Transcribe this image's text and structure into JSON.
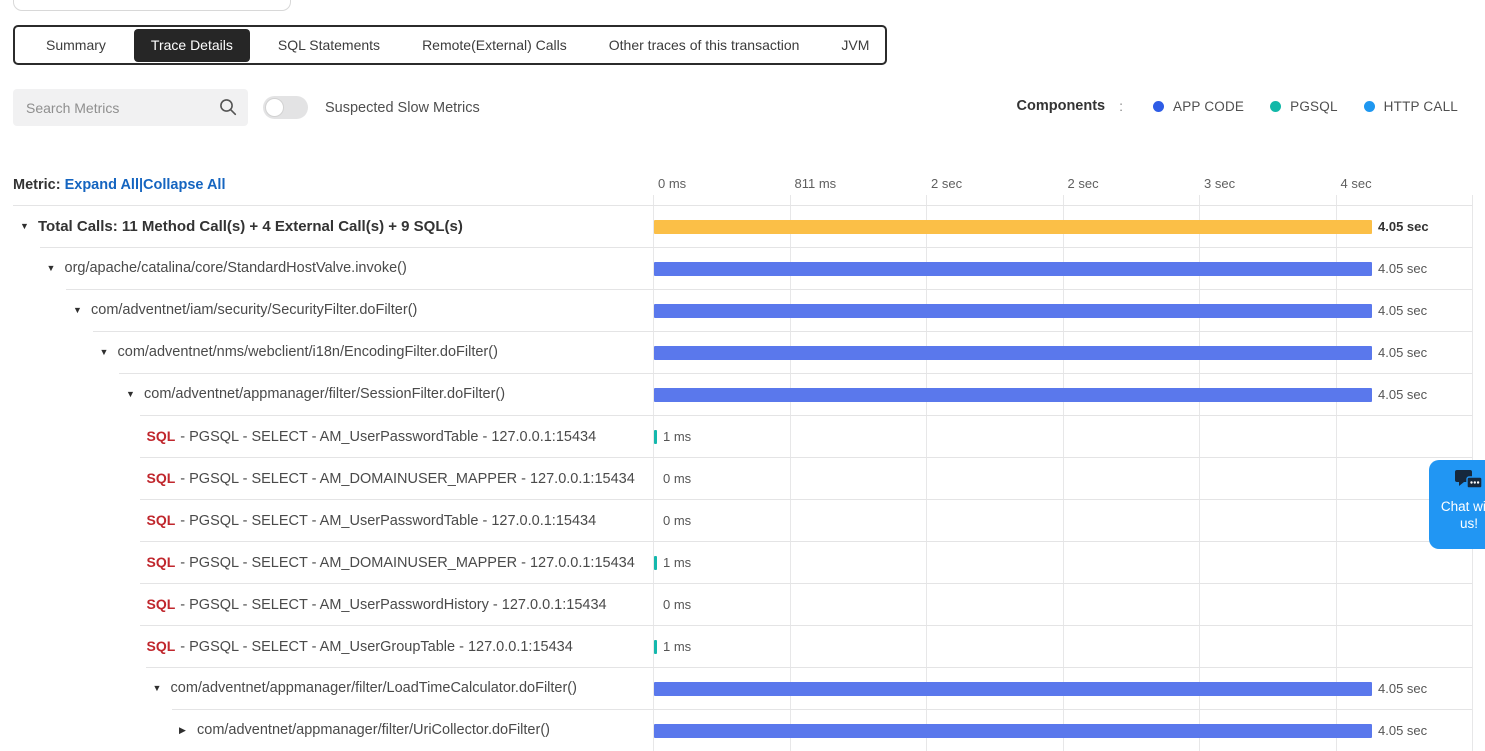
{
  "tabs": {
    "items": [
      {
        "label": "Summary",
        "active": false
      },
      {
        "label": "Trace Details",
        "active": true
      },
      {
        "label": "SQL Statements",
        "active": false
      },
      {
        "label": "Remote(External) Calls",
        "active": false
      },
      {
        "label": "Other traces of this transaction",
        "active": false
      },
      {
        "label": "JVM",
        "active": false
      }
    ]
  },
  "filters": {
    "search_placeholder": "Search Metrics",
    "toggle_label": "Suspected Slow Metrics",
    "toggle_on": false
  },
  "legend": {
    "title": "Components",
    "colon": ":",
    "items": [
      {
        "label": "APP CODE",
        "color": "#2e5ce6"
      },
      {
        "label": "PGSQL",
        "color": "#12b8a8"
      },
      {
        "label": "HTTP CALL",
        "color": "#1e97f0"
      }
    ]
  },
  "table": {
    "metric_label": "Metric:",
    "expand_all": "Expand All",
    "divider": "|",
    "collapse_all": "Collapse All",
    "time_axis": [
      "0 ms",
      "811 ms",
      "2 sec",
      "2 sec",
      "3 sec",
      "4 sec"
    ],
    "total_duration": "4.05 sec",
    "rows": [
      {
        "kind": "total",
        "depth": 0,
        "arrow": "down",
        "label": "Total Calls: 11 Method Call(s) + 4 External Call(s) + 9 SQL(s)",
        "duration": "4.05 sec",
        "bar": "full",
        "bar_color": "#fbbf47"
      },
      {
        "kind": "method",
        "depth": 1,
        "arrow": "down",
        "label": "org/apache/catalina/core/StandardHostValve.invoke()",
        "duration": "4.05 sec",
        "bar": "full",
        "bar_color": "#5a78ec"
      },
      {
        "kind": "method",
        "depth": 2,
        "arrow": "down",
        "label": "com/adventnet/iam/security/SecurityFilter.doFilter()",
        "duration": "4.05 sec",
        "bar": "full",
        "bar_color": "#5a78ec"
      },
      {
        "kind": "method",
        "depth": 3,
        "arrow": "down",
        "label": "com/adventnet/nms/webclient/i18n/EncodingFilter.doFilter()",
        "duration": "4.05 sec",
        "bar": "full",
        "bar_color": "#5a78ec"
      },
      {
        "kind": "method",
        "depth": 4,
        "arrow": "down",
        "label": "com/adventnet/appmanager/filter/SessionFilter.doFilter()",
        "duration": "4.05 sec",
        "bar": "full",
        "bar_color": "#5a78ec"
      },
      {
        "kind": "sql",
        "depth": 5,
        "prefix": "SQL",
        "label": "- PGSQL - SELECT - AM_UserPasswordTable - 127.0.0.1:15434",
        "duration": "1 ms",
        "bar": "sliver",
        "bar_color": "#14b8ad"
      },
      {
        "kind": "sql",
        "depth": 5,
        "prefix": "SQL",
        "label": "- PGSQL - SELECT - AM_DOMAINUSER_MAPPER - 127.0.0.1:15434",
        "duration": "0 ms",
        "bar": "none"
      },
      {
        "kind": "sql",
        "depth": 5,
        "prefix": "SQL",
        "label": "- PGSQL - SELECT - AM_UserPasswordTable - 127.0.0.1:15434",
        "duration": "0 ms",
        "bar": "none"
      },
      {
        "kind": "sql",
        "depth": 5,
        "prefix": "SQL",
        "label": "- PGSQL - SELECT - AM_DOMAINUSER_MAPPER - 127.0.0.1:15434",
        "duration": "1 ms",
        "bar": "sliver",
        "bar_color": "#14b8ad"
      },
      {
        "kind": "sql",
        "depth": 5,
        "prefix": "SQL",
        "label": "- PGSQL - SELECT - AM_UserPasswordHistory - 127.0.0.1:15434",
        "duration": "0 ms",
        "bar": "none"
      },
      {
        "kind": "sql",
        "depth": 5,
        "prefix": "SQL",
        "label": "- PGSQL - SELECT - AM_UserGroupTable - 127.0.0.1:15434",
        "duration": "1 ms",
        "bar": "sliver",
        "bar_color": "#14b8ad"
      },
      {
        "kind": "method",
        "depth": 5,
        "arrow": "down",
        "label": "com/adventnet/appmanager/filter/LoadTimeCalculator.doFilter()",
        "duration": "4.05 sec",
        "bar": "full",
        "bar_color": "#5a78ec"
      },
      {
        "kind": "method",
        "depth": 6,
        "arrow": "right",
        "label": "com/adventnet/appmanager/filter/UriCollector.doFilter()",
        "duration": "4.05 sec",
        "bar": "full",
        "bar_color": "#5a78ec"
      }
    ]
  },
  "chat": {
    "label": "Chat with us!",
    "color": "#2196f3"
  },
  "colors": {
    "total_bar": "#fbbf47",
    "method_bar": "#5a78ec",
    "sql_bar": "#14b8ad",
    "link": "#1565c0",
    "sql_prefix": "#c0272d",
    "active_tab_bg": "#262626"
  }
}
